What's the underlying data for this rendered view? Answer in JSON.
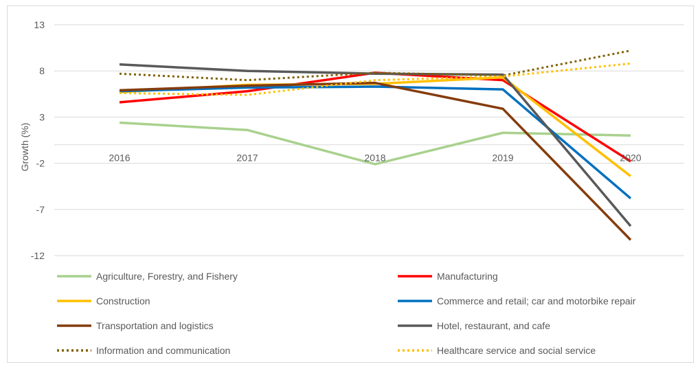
{
  "chart_data": {
    "type": "line",
    "title": "",
    "xlabel": "",
    "ylabel": "Growth (%)",
    "categories": [
      "2016",
      "2017",
      "2018",
      "2019",
      "2020"
    ],
    "ylim": [
      -12,
      13
    ],
    "yticks": [
      13,
      8,
      3,
      -2,
      -7,
      -12
    ],
    "grid": true,
    "legend_position": "bottom",
    "series": [
      {
        "name": "Agriculture, Forestry, and Fishery",
        "values": [
          2.4,
          1.6,
          -2.1,
          1.3,
          1.0
        ],
        "color": "#a9d18e",
        "dash": "solid"
      },
      {
        "name": "Manufacturing",
        "values": [
          4.6,
          5.8,
          7.8,
          7.0,
          -1.8
        ],
        "color": "#ff0000",
        "dash": "solid"
      },
      {
        "name": "Construction",
        "values": [
          5.7,
          6.5,
          6.6,
          7.3,
          -3.4
        ],
        "color": "#ffc000",
        "dash": "solid"
      },
      {
        "name": "Commerce and retail; car and motorbike repair",
        "values": [
          5.8,
          6.2,
          6.3,
          6.0,
          -5.8
        ],
        "color": "#0070c0",
        "dash": "solid"
      },
      {
        "name": "Transportation and logistics",
        "values": [
          5.9,
          6.4,
          6.7,
          3.9,
          -10.3
        ],
        "color": "#843c0c",
        "dash": "solid"
      },
      {
        "name": "Hotel, restaurant, and cafe",
        "values": [
          8.7,
          8.0,
          7.7,
          7.6,
          -8.8
        ],
        "color": "#595959",
        "dash": "solid"
      },
      {
        "name": "Information and communication",
        "values": [
          7.7,
          7.0,
          7.8,
          7.5,
          10.2
        ],
        "color": "#806000",
        "dash": "dotted"
      },
      {
        "name": "Healthcare service and social service",
        "values": [
          5.6,
          5.4,
          7.0,
          7.4,
          8.8
        ],
        "color": "#ffc000",
        "dash": "dotted"
      }
    ]
  }
}
